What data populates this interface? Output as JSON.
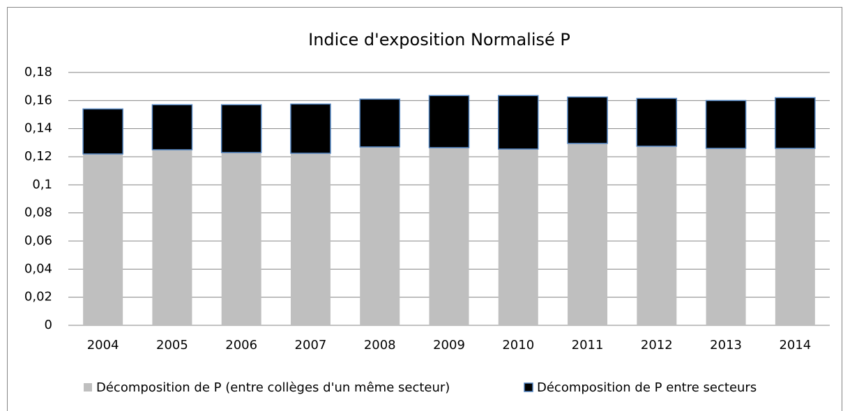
{
  "chart_data": {
    "type": "stacked-bar",
    "title": "Indice d'exposition Normalisé P",
    "categories": [
      "2004",
      "2005",
      "2006",
      "2007",
      "2008",
      "2009",
      "2010",
      "2011",
      "2012",
      "2013",
      "2014"
    ],
    "series": [
      {
        "name": "Décomposition de P (entre collèges d'un même secteur)",
        "color": "#bfbfbf",
        "values": [
          0.122,
          0.125,
          0.123,
          0.1225,
          0.127,
          0.1265,
          0.1255,
          0.1295,
          0.1275,
          0.126,
          0.126
        ]
      },
      {
        "name": "Décomposition de P entre secteurs",
        "color": "#000000",
        "values": [
          0.032,
          0.032,
          0.034,
          0.035,
          0.034,
          0.037,
          0.038,
          0.033,
          0.034,
          0.034,
          0.036
        ]
      }
    ],
    "ylim": [
      0,
      0.18
    ],
    "yticks": [
      0,
      {
        "value": 0.02,
        "label": "0,02"
      },
      {
        "value": 0.04,
        "label": "0,04"
      },
      {
        "value": 0.06,
        "label": "0,06"
      },
      {
        "value": 0.08,
        "label": "0,08"
      },
      {
        "value": 0.1,
        "label": "0,1"
      },
      {
        "value": 0.12,
        "label": "0,12"
      },
      {
        "value": 0.14,
        "label": "0,14"
      },
      {
        "value": 0.16,
        "label": "0,16"
      },
      {
        "value": 0.18,
        "label": "0,18"
      }
    ],
    "grid": true,
    "legend": "bottom"
  }
}
